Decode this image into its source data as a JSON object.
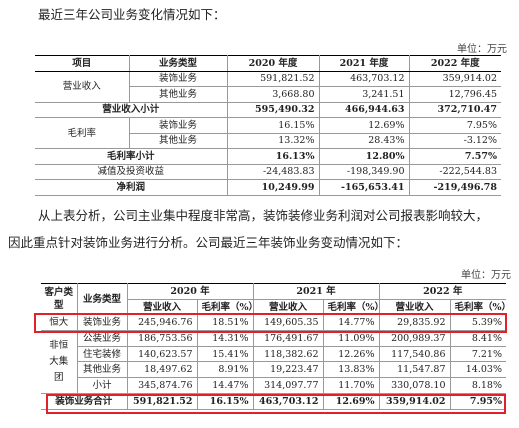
{
  "para1": "最近三年公司业务变化情况如下：",
  "unit1": "单位：万元",
  "table1": {
    "headers": [
      "项目",
      "业务类型",
      "2020 年度",
      "2021 年度",
      "2022 年度"
    ],
    "revenue_label": "营业收入",
    "revenue_rows": [
      {
        "type": "装饰业务",
        "v2020": "591,821.52",
        "v2021": "463,703.12",
        "v2022": "359,914.02"
      },
      {
        "type": "其他业务",
        "v2020": "3,668.80",
        "v2021": "3,241.51",
        "v2022": "12,796.45"
      }
    ],
    "revenue_subtotal": {
      "label": "营业收入小计",
      "v2020": "595,490.32",
      "v2021": "466,944.63",
      "v2022": "372,710.47"
    },
    "margin_label": "毛利率",
    "margin_rows": [
      {
        "type": "装饰业务",
        "v2020": "16.15%",
        "v2021": "12.69%",
        "v2022": "7.95%"
      },
      {
        "type": "其他业务",
        "v2020": "13.32%",
        "v2021": "28.43%",
        "v2022": "-3.12%"
      }
    ],
    "margin_subtotal": {
      "label": "毛利率小计",
      "v2020": "16.13%",
      "v2021": "12.80%",
      "v2022": "7.57%"
    },
    "impairment": {
      "label": "减值及投资收益",
      "v2020": "-24,483.83",
      "v2021": "-198,349.90",
      "v2022": "-222,544.83"
    },
    "net_profit": {
      "label": "净利润",
      "v2020": "10,249.99",
      "v2021": "-165,653.41",
      "v2022": "-219,496.78"
    }
  },
  "para2_line1": "从上表分析，公司主业集中程度非常高，装饰装修业务利润对公司报表影响较大，",
  "para2_line2": "因此重点针对装饰业务进行分析。公司最近三年装饰业务变动情况如下：",
  "unit2": "单位：万元",
  "table2": {
    "col_customer_type": "客户类型",
    "col_business_type": "业务类型",
    "years": [
      "2020 年",
      "2021 年",
      "2022 年"
    ],
    "sub_revenue": "营业收入",
    "sub_margin": "毛利率（%）",
    "hengda": {
      "customer": "恒大",
      "type": "装饰业务",
      "values": [
        "245,946.76",
        "18.51%",
        "149,605.35",
        "14.77%",
        "29,835.92",
        "5.39%"
      ]
    },
    "non_hengda_label": "非恒大集团",
    "non_hengda_rows": [
      {
        "type": "公装业务",
        "values": [
          "186,753.56",
          "14.31%",
          "176,491.67",
          "11.09%",
          "200,989.37",
          "8.41%"
        ]
      },
      {
        "type": "住宅装修",
        "values": [
          "140,623.57",
          "15.41%",
          "118,382.62",
          "12.26%",
          "117,540.86",
          "7.21%"
        ]
      },
      {
        "type": "其他业务",
        "values": [
          "18,497.62",
          "8.91%",
          "19,223.47",
          "13.83%",
          "11,547.87",
          "14.03%"
        ]
      },
      {
        "type": "小计",
        "values": [
          "345,874.76",
          "14.47%",
          "314,097.77",
          "11.70%",
          "330,078.10",
          "8.18%"
        ]
      }
    ],
    "total": {
      "label": "装饰业务合计",
      "values": [
        "591,821.52",
        "16.15%",
        "463,703.12",
        "12.69%",
        "359,914.02",
        "7.95%"
      ]
    }
  }
}
